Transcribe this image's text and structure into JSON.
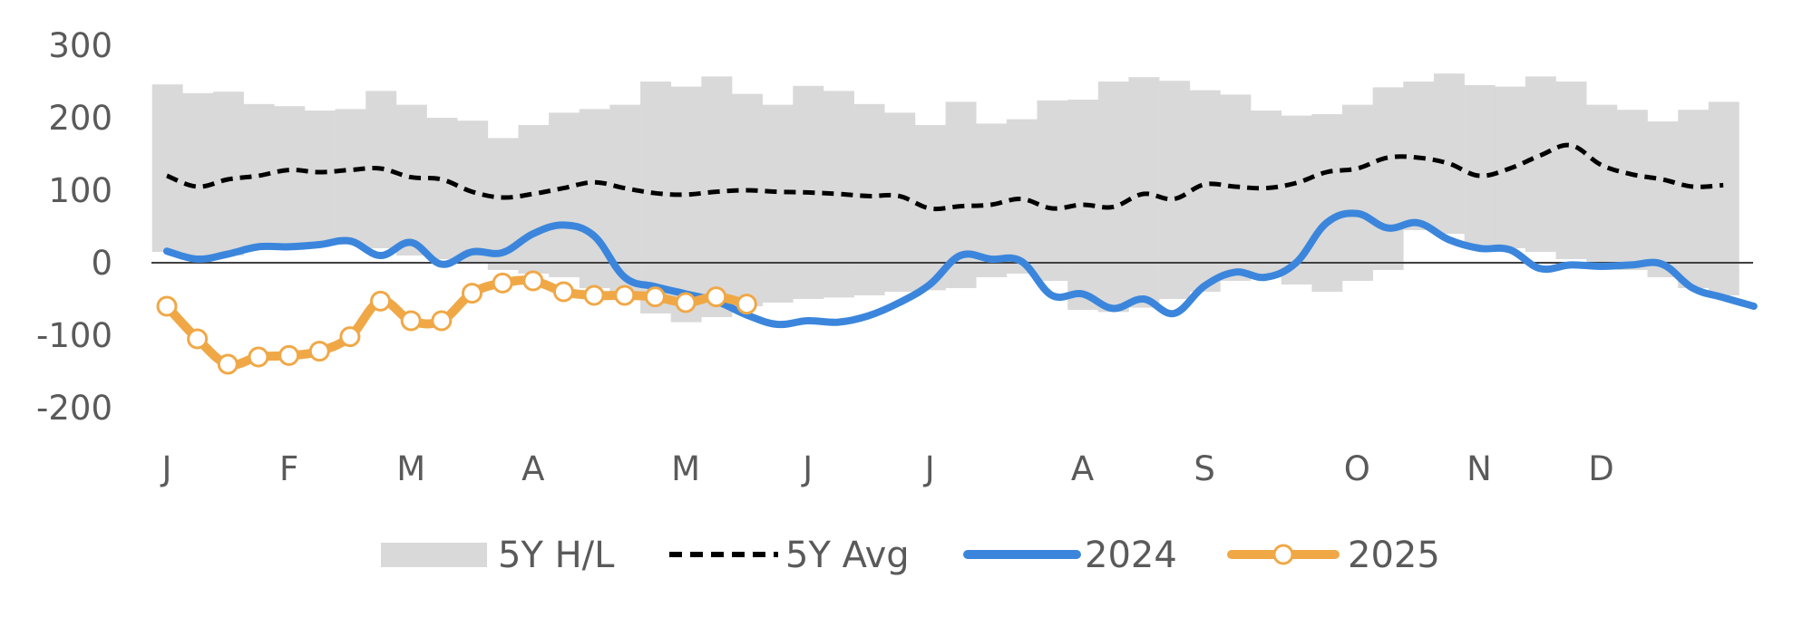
{
  "chart_data": {
    "type": "line",
    "title": "",
    "xlabel": "",
    "ylabel": "",
    "x_tick_labels": [
      "J",
      "F",
      "M",
      "A",
      "M",
      "J",
      "J",
      "A",
      "S",
      "O",
      "N",
      "D"
    ],
    "y_ticks": [
      300,
      200,
      100,
      0,
      -100,
      -200
    ],
    "ylim": [
      -200,
      300
    ],
    "weeks": 53,
    "legend_position": "bottom",
    "grid": false,
    "band": {
      "name": "5Y H/L",
      "color": "#d9d9d9",
      "high": [
        246,
        234,
        236,
        219,
        216,
        210,
        212,
        237,
        218,
        200,
        196,
        172,
        190,
        207,
        212,
        218,
        250,
        243,
        257,
        233,
        218,
        244,
        237,
        219,
        207,
        190,
        222,
        192,
        198,
        224,
        225,
        250,
        256,
        251,
        238,
        232,
        210,
        203,
        205,
        218,
        242,
        250,
        261,
        245,
        243,
        257,
        250,
        218,
        211,
        195,
        211,
        222
      ],
      "low": [
        15,
        5,
        10,
        20,
        22,
        25,
        25,
        20,
        10,
        5,
        0,
        -10,
        -15,
        -20,
        -35,
        -45,
        -70,
        -82,
        -75,
        -60,
        -55,
        -50,
        -48,
        -45,
        -40,
        -38,
        -35,
        -20,
        -15,
        -25,
        -65,
        -68,
        -62,
        -50,
        -40,
        -25,
        -20,
        -30,
        -40,
        -25,
        -10,
        45,
        40,
        25,
        20,
        15,
        5,
        -5,
        -10,
        -20,
        -35,
        -45
      ]
    },
    "series": [
      {
        "name": "5Y Avg",
        "color": "#000000",
        "style": "dashed",
        "values": [
          120,
          105,
          115,
          120,
          128,
          125,
          128,
          130,
          118,
          115,
          98,
          90,
          95,
          103,
          111,
          103,
          96,
          94,
          98,
          100,
          98,
          97,
          95,
          92,
          92,
          75,
          78,
          80,
          88,
          75,
          80,
          77,
          95,
          88,
          108,
          105,
          103,
          110,
          125,
          130,
          145,
          145,
          137,
          120,
          130,
          148,
          162,
          135,
          122,
          115,
          105,
          107
        ]
      },
      {
        "name": "2024",
        "color": "#3b86dc",
        "style": "solid",
        "values": [
          16,
          5,
          12,
          22,
          22,
          25,
          30,
          10,
          28,
          -2,
          15,
          14,
          40,
          52,
          37,
          -20,
          -33,
          -43,
          -53,
          -72,
          -85,
          -80,
          -82,
          -73,
          -55,
          -30,
          10,
          5,
          2,
          -45,
          -43,
          -63,
          -50,
          -70,
          -32,
          -13,
          -20,
          0,
          55,
          68,
          48,
          55,
          32,
          20,
          18,
          -8,
          -3,
          -5,
          -3,
          -2,
          -35,
          -48,
          -60
        ]
      },
      {
        "name": "2025",
        "color": "#f0a847",
        "style": "solid-markers",
        "values": [
          -60,
          -105,
          -140,
          -130,
          -128,
          -122,
          -102,
          -53,
          -80,
          -80,
          -42,
          -28,
          -25,
          -40,
          -45,
          -45,
          -47,
          -55,
          -47,
          -57
        ]
      }
    ]
  }
}
